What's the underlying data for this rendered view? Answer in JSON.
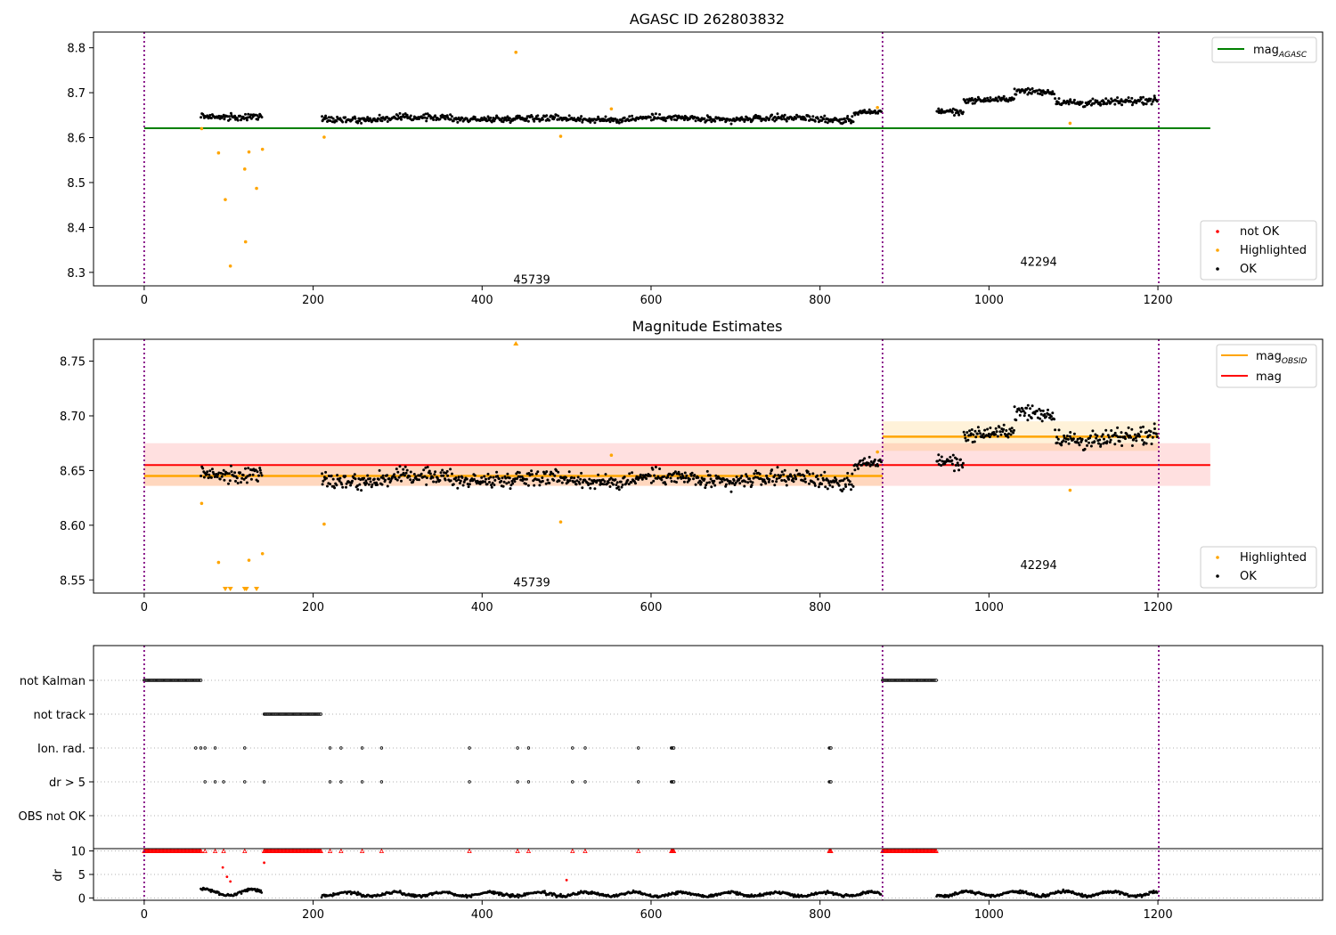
{
  "chart_data": [
    {
      "type": "scatter",
      "title": "AGASC ID 262803832",
      "xlim": [
        -60,
        1395
      ],
      "ylim": [
        8.27,
        8.835
      ],
      "xticks": [
        0,
        200,
        400,
        600,
        800,
        1000,
        1200
      ],
      "yticks": [
        8.3,
        8.4,
        8.5,
        8.6,
        8.7,
        8.8
      ],
      "obs_boundaries": [
        0,
        874,
        1201
      ],
      "obsid_labels": [
        {
          "text": "45739",
          "x": 437,
          "y": 8.285
        },
        {
          "text": "42294",
          "x": 1037,
          "y": 8.325
        }
      ],
      "lines": [
        {
          "name": "mag",
          "sub": "AGASC",
          "y": 8.621,
          "x0": 0,
          "x1": 1262,
          "color": "#008000"
        }
      ],
      "legend_top": [
        {
          "label": "mag",
          "sub": "AGASC",
          "color": "#008000"
        }
      ],
      "legend_bottom": [
        {
          "label": "not OK",
          "color": "#ff0000"
        },
        {
          "label": "Highlighted",
          "color": "#ffa500"
        },
        {
          "label": "OK",
          "color": "#000000"
        }
      ],
      "ok_segments": [
        {
          "x0": 67,
          "x1": 140,
          "y": 8.648,
          "noise": 0.006
        },
        {
          "x0": 210,
          "x1": 420,
          "y": 8.643,
          "noise": 0.006
        },
        {
          "x0": 420,
          "x1": 600,
          "y": 8.642,
          "noise": 0.006
        },
        {
          "x0": 600,
          "x1": 840,
          "y": 8.642,
          "noise": 0.006
        },
        {
          "x0": 840,
          "x1": 873,
          "y": 8.657,
          "noise": 0.005
        },
        {
          "x0": 938,
          "x1": 970,
          "y": 8.66,
          "noise": 0.006
        },
        {
          "x0": 970,
          "x1": 1030,
          "y": 8.685,
          "noise": 0.005
        },
        {
          "x0": 1030,
          "x1": 1078,
          "y": 8.7,
          "noise": 0.006
        },
        {
          "x0": 1078,
          "x1": 1200,
          "y": 8.68,
          "noise": 0.007
        }
      ],
      "highlighted": [
        [
          68,
          8.62
        ],
        [
          88,
          8.566
        ],
        [
          96,
          8.462
        ],
        [
          102,
          8.314
        ],
        [
          119,
          8.53
        ],
        [
          120,
          8.368
        ],
        [
          124,
          8.568
        ],
        [
          133,
          8.487
        ],
        [
          140,
          8.574
        ],
        [
          213,
          8.601
        ],
        [
          440,
          8.79
        ],
        [
          493,
          8.603
        ],
        [
          553,
          8.664
        ],
        [
          868,
          8.667
        ],
        [
          1096,
          8.632
        ]
      ]
    },
    {
      "type": "scatter",
      "title": "Magnitude Estimates",
      "xlim": [
        -60,
        1395
      ],
      "ylim": [
        8.538,
        8.77
      ],
      "xticks": [
        0,
        200,
        400,
        600,
        800,
        1000,
        1200
      ],
      "yticks": [
        8.55,
        8.6,
        8.65,
        8.7,
        8.75
      ],
      "obs_boundaries": [
        0,
        874,
        1201
      ],
      "obsid_labels": [
        {
          "text": "45739",
          "x": 437,
          "y": 8.548
        },
        {
          "text": "42294",
          "x": 1037,
          "y": 8.564
        }
      ],
      "mag": {
        "y": 8.655,
        "lo": 8.636,
        "hi": 8.675,
        "x0": 0,
        "x1": 1262,
        "color": "#ff0000"
      },
      "mag_obsid": [
        {
          "x0": 0,
          "x1": 874,
          "y": 8.645,
          "lo": 8.636,
          "hi": 8.654,
          "color": "#ffa500"
        },
        {
          "x0": 874,
          "x1": 1201,
          "y": 8.681,
          "lo": 8.668,
          "hi": 8.695,
          "color": "#ffa500"
        }
      ],
      "legend_top": [
        {
          "label": "mag",
          "sub": "OBSID",
          "color": "#ffa500"
        },
        {
          "label": "mag",
          "sub": "",
          "color": "#ff0000"
        }
      ],
      "legend_bottom": [
        {
          "label": "Highlighted",
          "color": "#ffa500"
        },
        {
          "label": "OK",
          "color": "#000000"
        }
      ],
      "clip_markers": [
        [
          440,
          "up"
        ],
        [
          96,
          "down"
        ],
        [
          102,
          "down"
        ],
        [
          119,
          "down"
        ],
        [
          121,
          "down"
        ],
        [
          133,
          "down"
        ]
      ]
    },
    {
      "type": "scatter",
      "title": "",
      "xlim": [
        -60,
        1395
      ],
      "xticks": [
        0,
        200,
        400,
        600,
        800,
        1000,
        1200
      ],
      "obs_boundaries": [
        0,
        874,
        1201
      ],
      "flag_rows": [
        "not Kalman",
        "not track",
        "Ion. rad.",
        "dr > 5",
        "OBS not OK"
      ],
      "flag_ranges": [
        {
          "row": "not Kalman",
          "x0": 0,
          "x1": 68
        },
        {
          "row": "not Kalman",
          "x0": 874,
          "x1": 938
        },
        {
          "row": "not track",
          "x0": 142,
          "x1": 210
        }
      ],
      "flag_points": {
        "Ion. rad.": [
          61,
          67,
          72,
          84,
          119,
          220,
          233,
          258,
          281,
          385,
          442,
          455,
          507,
          522,
          585,
          624,
          625,
          626,
          627,
          811,
          812,
          813
        ],
        "dr > 5": [
          72,
          84,
          94,
          119,
          142,
          220,
          233,
          258,
          281,
          385,
          442,
          455,
          507,
          522,
          585,
          624,
          625,
          626,
          627,
          811,
          812,
          813
        ]
      },
      "dr_ylabel": "dr",
      "dr_ylim": [
        -0.5,
        10.5
      ],
      "dr_yticks": [
        0,
        5,
        10
      ],
      "dr_cap": 10,
      "dr_red_points": [
        [
          93,
          6.5
        ],
        [
          98,
          4.5
        ],
        [
          102,
          3.5
        ],
        [
          142,
          7.5
        ],
        [
          500,
          3.8
        ]
      ],
      "dr_segments": [
        {
          "x0": 67,
          "x1": 140,
          "y": 1.2,
          "noise": 0.8
        },
        {
          "x0": 210,
          "x1": 873,
          "y": 0.8,
          "noise": 0.5
        },
        {
          "x0": 938,
          "x1": 1200,
          "y": 0.9,
          "noise": 0.6
        }
      ]
    }
  ]
}
